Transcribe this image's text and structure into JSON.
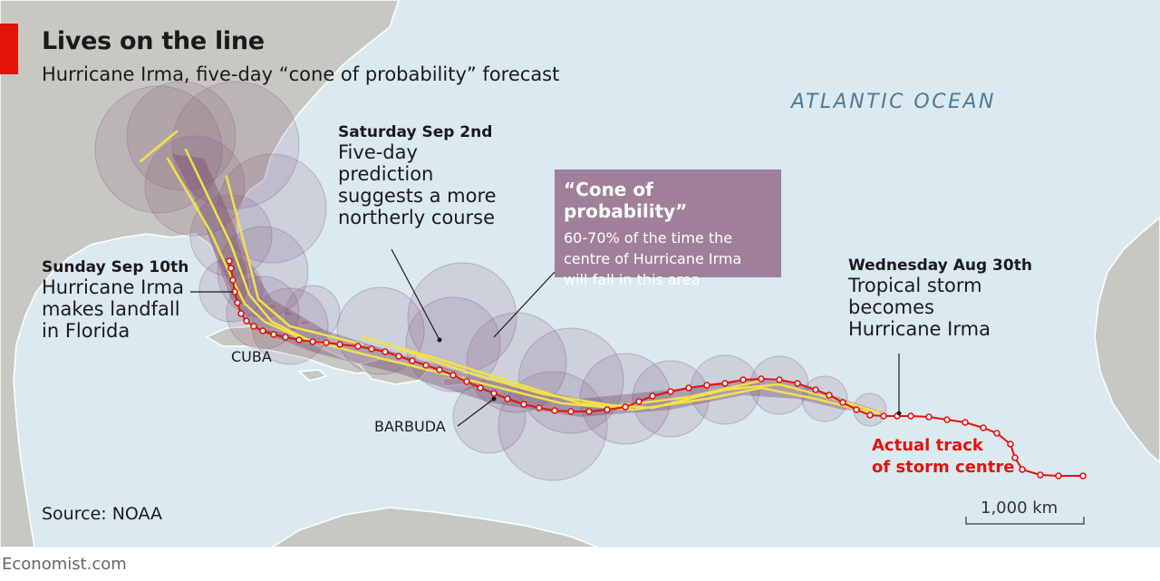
{
  "title": "Lives on the line",
  "subtitle": "Hurricane Irma, five-day “cone of probability” forecast",
  "ocean_label": "ATLANTIC OCEAN",
  "annotations": {
    "saturday": {
      "head": "Saturday Sep 2nd",
      "lines": [
        "Five-day",
        "prediction",
        "suggests a more",
        "northerly course"
      ]
    },
    "sunday": {
      "head": "Sunday Sep 10th",
      "lines": [
        "Hurricane Irma",
        "makes landfall",
        "in Florida"
      ]
    },
    "wednesday": {
      "head": "Wednesday Aug 30th",
      "lines": [
        "Tropical storm",
        "becomes",
        "Hurricane Irma"
      ]
    }
  },
  "cone_box": {
    "title": "“Cone of probability”",
    "lines": [
      "60-70% of the time the",
      "centre of Hurricane Irma",
      "will fall in this area"
    ]
  },
  "places": {
    "cuba": "CUBA",
    "barbuda": "BARBUDA"
  },
  "track_label": [
    "Actual track",
    "of storm centre"
  ],
  "source": "Source: NOAA",
  "scale": "1,000 km",
  "footer": "Economist.com",
  "colors": {
    "sea": "#dbe9f0",
    "land": "#c8c8c3",
    "cone": "#7a4b6d",
    "cone_box": "#a07f98",
    "forecast_line": "#f2e14a",
    "track": "#e3120b",
    "accent": "#e3120b"
  }
}
